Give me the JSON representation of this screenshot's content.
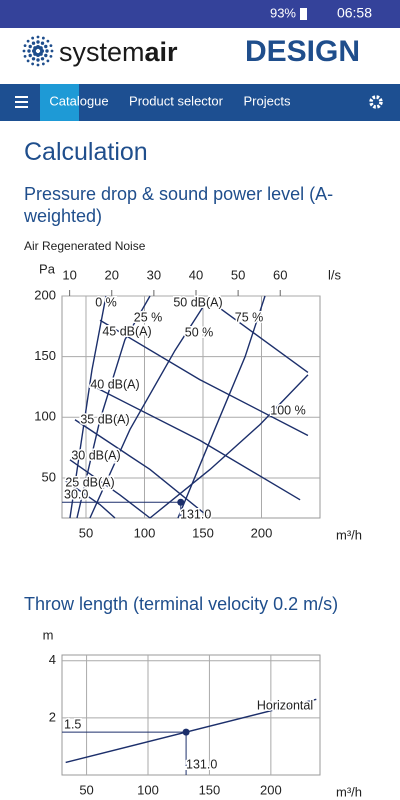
{
  "status_bar": {
    "battery": "93%",
    "time": "06:58"
  },
  "header": {
    "logo_parts": [
      "system",
      "air"
    ],
    "brand": "DESIGN"
  },
  "nav": {
    "items": [
      "Catalogue",
      "Product selector",
      "Projects"
    ],
    "active": 0
  },
  "page": {
    "title": "Calculation",
    "section1": "Pressure drop & sound power level (A-weighted)",
    "subtitle": "Air Regenerated Noise",
    "section2": "Throw length (terminal velocity 0.2 m/s)"
  },
  "chart_data": [
    {
      "type": "line",
      "y_label": "Pa",
      "x_label": "m³/h",
      "x2_label": "l/s",
      "xlim": [
        29.5,
        250
      ],
      "ylim": [
        17,
        200
      ],
      "x2lim": [
        8.19,
        69.44
      ],
      "xticks": [
        50,
        100,
        150,
        200
      ],
      "yticks": [
        50,
        100,
        150,
        200
      ],
      "x2ticks": [
        10,
        20,
        30,
        40,
        50,
        60
      ],
      "grid": true,
      "series": [
        {
          "name": "0 %",
          "color": "#1c2f6b",
          "x": [
            36.3,
            44.9,
            55.1,
            67.1
          ],
          "values": [
            17,
            73,
            139,
            200
          ]
        },
        {
          "name": "25 %",
          "color": "#1c2f6b",
          "x": [
            42.3,
            62,
            83.3,
            104.7
          ],
          "values": [
            17,
            98,
            164,
            200
          ]
        },
        {
          "name": "50 %",
          "color": "#1c2f6b",
          "x": [
            53.4,
            87.6,
            126,
            156
          ],
          "values": [
            17,
            90,
            155,
            200
          ]
        },
        {
          "name": "75 %",
          "color": "#1c2f6b",
          "x": [
            128.6,
            160,
            186,
            203
          ],
          "values": [
            17,
            90,
            150,
            200
          ]
        },
        {
          "name": "100 %",
          "color": "#1c2f6b",
          "x": [
            104.7,
            156,
            198.7,
            239.7
          ],
          "values": [
            17,
            57,
            94,
            135
          ]
        },
        {
          "name": "50 dB(A)",
          "color": "#1c2f6b",
          "x": [
            160,
            239.7
          ],
          "values": [
            193,
            137
          ]
        },
        {
          "name": "45 dB(A)",
          "color": "#1c2f6b",
          "x": [
            62,
            147.4,
            239.7
          ],
          "values": [
            180,
            131,
            85
          ]
        },
        {
          "name": "40 dB(A)",
          "color": "#1c2f6b",
          "x": [
            53.4,
            147.4,
            233
          ],
          "values": [
            127,
            81,
            32
          ]
        },
        {
          "name": "35 dB(A)",
          "color": "#1c2f6b",
          "x": [
            40.6,
            104.7,
            156
          ],
          "values": [
            98,
            57,
            17
          ]
        },
        {
          "name": "30 dB(A)",
          "color": "#1c2f6b",
          "x": [
            36.3,
            79,
            104.7
          ],
          "values": [
            65,
            36,
            17
          ]
        },
        {
          "name": "25 dB(A)",
          "color": "#1c2f6b",
          "x": [
            32,
            62,
            74.8
          ],
          "values": [
            48,
            28,
            17
          ]
        }
      ],
      "operating_point": {
        "color": "#1c2f6b",
        "x": [
          131
        ],
        "values": [
          30
        ],
        "value_labels": [
          "30.0"
        ],
        "x_labels": [
          "131.0"
        ]
      }
    },
    {
      "type": "line",
      "y_label": "m",
      "x_label": "m³/h",
      "xlim": [
        30,
        240
      ],
      "ylim": [
        0,
        4.2
      ],
      "xticks": [
        50,
        100,
        150,
        200
      ],
      "yticks": [
        2,
        4
      ],
      "grid": true,
      "series": [
        {
          "name": "Horizontal",
          "color": "#1c2f6b",
          "x": [
            33,
            237
          ],
          "values": [
            0.44,
            2.65
          ]
        }
      ],
      "operating_point": {
        "color": "#1c2f6b",
        "x": [
          131
        ],
        "values": [
          1.5
        ],
        "x_labels": [
          "131.0"
        ]
      }
    }
  ]
}
